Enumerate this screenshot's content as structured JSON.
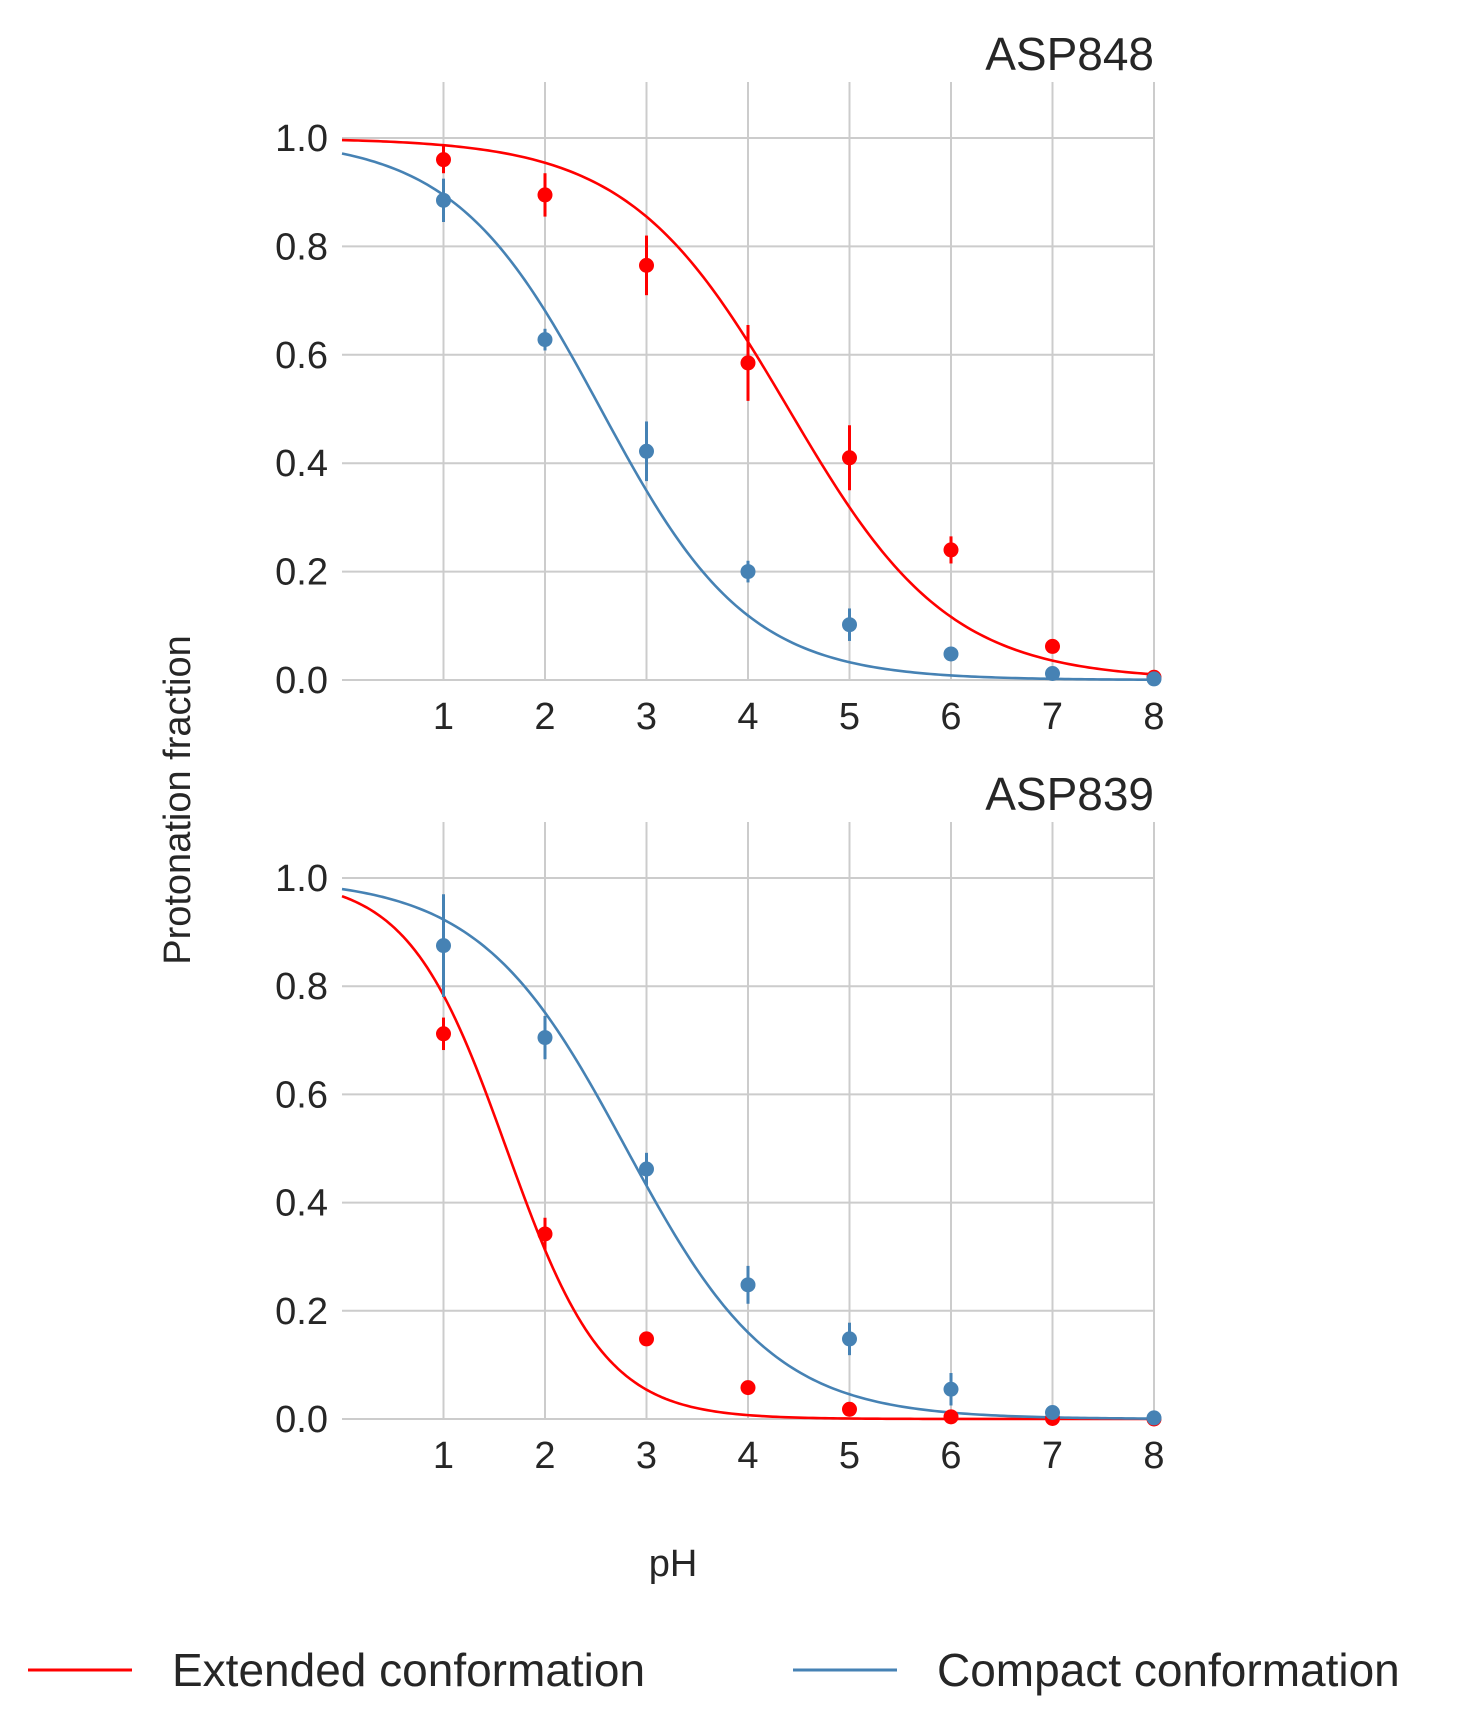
{
  "figure": {
    "ylabel": "Protonation fraction",
    "xlabel": "pH",
    "legend": [
      {
        "label": "Extended conformation",
        "color": "#ff0000"
      },
      {
        "label": "Compact conformation",
        "color": "#4682b4"
      }
    ]
  },
  "chart_data": [
    {
      "type": "scatter",
      "title": "ASP848",
      "xlabel": "pH",
      "ylabel": "Protonation fraction",
      "xlim": [
        0,
        8
      ],
      "ylim": [
        0,
        1.1
      ],
      "xticks": [
        "1",
        "2",
        "3",
        "4",
        "5",
        "6",
        "7",
        "8"
      ],
      "yticks": [
        "0.0",
        "0.2",
        "0.4",
        "0.6",
        "0.8",
        "1.0"
      ],
      "grid": true,
      "series": [
        {
          "name": "Extended conformation",
          "color": "#ff0000",
          "x": [
            1,
            2,
            3,
            4,
            5,
            6,
            7,
            8
          ],
          "y": [
            0.96,
            0.895,
            0.765,
            0.585,
            0.41,
            0.24,
            0.062,
            0.005
          ],
          "yerr": [
            0.025,
            0.04,
            0.055,
            0.07,
            0.06,
            0.025,
            0.0,
            0.0
          ],
          "fit": {
            "pKa": 4.4,
            "n": 0.55
          }
        },
        {
          "name": "Compact conformation",
          "color": "#4682b4",
          "x": [
            1,
            2,
            3,
            4,
            5,
            6,
            7,
            8
          ],
          "y": [
            0.885,
            0.628,
            0.422,
            0.2,
            0.102,
            0.048,
            0.012,
            0.002
          ],
          "yerr": [
            0.04,
            0.02,
            0.055,
            0.02,
            0.03,
            0.0,
            0.0,
            0.0
          ],
          "fit": {
            "pKa": 2.55,
            "n": 0.6
          }
        }
      ]
    },
    {
      "type": "scatter",
      "title": "ASP839",
      "xlabel": "pH",
      "ylabel": "Protonation fraction",
      "xlim": [
        0,
        8
      ],
      "ylim": [
        0,
        1.1
      ],
      "xticks": [
        "1",
        "2",
        "3",
        "4",
        "5",
        "6",
        "7",
        "8"
      ],
      "yticks": [
        "0.0",
        "0.2",
        "0.4",
        "0.6",
        "0.8",
        "1.0"
      ],
      "grid": true,
      "series": [
        {
          "name": "Extended conformation",
          "color": "#ff0000",
          "x": [
            1,
            2,
            3,
            4,
            5,
            6,
            7,
            8
          ],
          "y": [
            0.712,
            0.342,
            0.148,
            0.058,
            0.018,
            0.004,
            0.001,
            0.0
          ],
          "yerr": [
            0.03,
            0.03,
            0.0,
            0.0,
            0.0,
            0.0,
            0.0,
            0.0
          ],
          "fit": {
            "pKa": 1.62,
            "n": 0.9
          }
        },
        {
          "name": "Compact conformation",
          "color": "#4682b4",
          "x": [
            1,
            2,
            3,
            4,
            5,
            6,
            7,
            8
          ],
          "y": [
            0.875,
            0.705,
            0.462,
            0.248,
            0.148,
            0.055,
            0.012,
            0.002
          ],
          "yerr": [
            0.095,
            0.04,
            0.03,
            0.035,
            0.03,
            0.03,
            0.0,
            0.0
          ],
          "fit": {
            "pKa": 2.8,
            "n": 0.6
          }
        }
      ]
    }
  ]
}
